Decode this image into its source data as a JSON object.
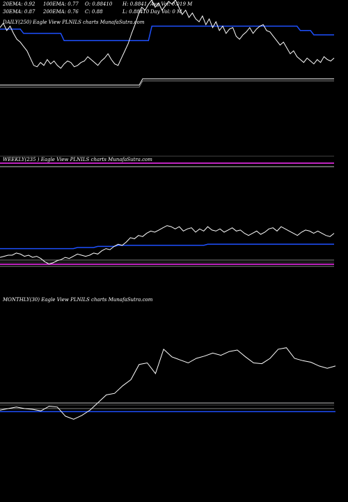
{
  "header": {
    "row1": [
      {
        "text": "20EMA: 0.92"
      },
      {
        "text": "100EMA: 0.77"
      },
      {
        "text": "O: 0.88410"
      },
      {
        "text": "H: 0.8841"
      },
      {
        "text": "Avg Vol: 0.019 M"
      }
    ],
    "row2": [
      {
        "text": "30EMA: 0.87"
      },
      {
        "text": "200EMA: 0.76"
      },
      {
        "text": "C: 0.88"
      },
      {
        "text": "L: 0.88410"
      },
      {
        "text": "Day Vol: 0  M"
      }
    ]
  },
  "colors": {
    "price": "#ffffff",
    "ema": "#1e50ff",
    "band": "#ff30ff",
    "background": "#000000"
  },
  "chart_data": [
    {
      "type": "line",
      "label": "DAILY(250)  Eagle   View  PLNILS charts MunafaSutra.com",
      "series": [
        {
          "values": [
            0.96,
            0.99,
            0.94,
            0.97,
            0.92,
            0.88,
            0.86,
            0.83,
            0.8,
            0.75,
            0.7,
            0.69,
            0.72,
            0.7,
            0.74,
            0.71,
            0.73,
            0.7,
            0.68,
            0.71,
            0.73,
            0.72,
            0.69,
            0.7,
            0.72,
            0.73,
            0.76,
            0.74,
            0.72,
            0.7,
            0.73,
            0.75,
            0.78,
            0.74,
            0.71,
            0.7,
            0.75,
            0.8,
            0.85,
            0.92,
            0.98,
            1.05,
            1.1,
            1.08,
            1.12,
            1.15,
            1.1,
            1.13,
            1.08,
            1.11,
            1.14,
            1.12,
            1.15,
            1.1,
            1.05,
            1.08,
            1.03,
            1.06,
            1.02,
            1.0,
            1.04,
            0.98,
            1.02,
            0.96,
            1.0,
            0.94,
            0.97,
            0.92,
            0.95,
            0.96,
            0.9,
            0.88,
            0.91,
            0.93,
            0.96,
            0.92,
            0.95,
            0.97,
            0.98,
            0.94,
            0.93,
            0.9,
            0.87,
            0.84,
            0.86,
            0.82,
            0.78,
            0.8,
            0.76,
            0.74,
            0.72,
            0.75,
            0.73,
            0.71,
            0.74,
            0.72,
            0.76,
            0.74,
            0.73,
            0.75
          ]
        },
        {
          "values": [
            0.95,
            0.95,
            0.95,
            0.95,
            0.95,
            0.95,
            0.95,
            0.92,
            0.92,
            0.92,
            0.92,
            0.92,
            0.92,
            0.92,
            0.92,
            0.92,
            0.92,
            0.92,
            0.92,
            0.87,
            0.87,
            0.87,
            0.87,
            0.87,
            0.87,
            0.87,
            0.87,
            0.87,
            0.87,
            0.87,
            0.87,
            0.87,
            0.87,
            0.87,
            0.87,
            0.87,
            0.87,
            0.87,
            0.87,
            0.87,
            0.87,
            0.87,
            0.87,
            0.87,
            0.87,
            0.97,
            0.97,
            0.97,
            0.97,
            0.97,
            0.97,
            0.97,
            0.97,
            0.97,
            0.97,
            0.97,
            0.97,
            0.97,
            0.97,
            0.97,
            0.97,
            0.97,
            0.97,
            0.97,
            0.97,
            0.97,
            0.97,
            0.97,
            0.97,
            0.97,
            0.97,
            0.97,
            0.97,
            0.97,
            0.97,
            0.97,
            0.97,
            0.97,
            0.97,
            0.97,
            0.97,
            0.97,
            0.97,
            0.97,
            0.97,
            0.97,
            0.97,
            0.97,
            0.97,
            0.94,
            0.94,
            0.94,
            0.94,
            0.91,
            0.91,
            0.91,
            0.91,
            0.91,
            0.91,
            0.91
          ]
        }
      ],
      "ylim": [
        0.55,
        1.15
      ]
    },
    {
      "type": "line",
      "label": "WEEKLY(235                    ) Eagle   View  PLNILS charts MunafaSutra.com",
      "series": [
        {
          "values": [
            0.56,
            0.57,
            0.58,
            0.58,
            0.6,
            0.59,
            0.57,
            0.58,
            0.56,
            0.57,
            0.55,
            0.52,
            0.5,
            0.51,
            0.53,
            0.54,
            0.56,
            0.55,
            0.57,
            0.59,
            0.58,
            0.57,
            0.58,
            0.6,
            0.59,
            0.62,
            0.64,
            0.63,
            0.66,
            0.68,
            0.67,
            0.7,
            0.74,
            0.73,
            0.76,
            0.75,
            0.78,
            0.8,
            0.79,
            0.81,
            0.83,
            0.85,
            0.84,
            0.82,
            0.84,
            0.8,
            0.82,
            0.83,
            0.79,
            0.82,
            0.8,
            0.84,
            0.81,
            0.8,
            0.82,
            0.79,
            0.81,
            0.83,
            0.8,
            0.81,
            0.78,
            0.76,
            0.78,
            0.8,
            0.77,
            0.79,
            0.82,
            0.83,
            0.8,
            0.84,
            0.82,
            0.8,
            0.78,
            0.76,
            0.79,
            0.81,
            0.8,
            0.78,
            0.8,
            0.78,
            0.76,
            0.75,
            0.78
          ]
        },
        {
          "values": [
            0.64,
            0.64,
            0.64,
            0.64,
            0.64,
            0.64,
            0.64,
            0.64,
            0.64,
            0.64,
            0.64,
            0.64,
            0.64,
            0.64,
            0.64,
            0.64,
            0.64,
            0.64,
            0.64,
            0.65,
            0.65,
            0.65,
            0.65,
            0.65,
            0.66,
            0.66,
            0.66,
            0.66,
            0.66,
            0.67,
            0.67,
            0.67,
            0.67,
            0.67,
            0.67,
            0.67,
            0.67,
            0.67,
            0.67,
            0.67,
            0.67,
            0.67,
            0.67,
            0.67,
            0.67,
            0.67,
            0.67,
            0.67,
            0.67,
            0.67,
            0.67,
            0.68,
            0.68,
            0.68,
            0.68,
            0.68,
            0.68,
            0.68,
            0.68,
            0.68,
            0.68,
            0.68,
            0.68,
            0.68,
            0.68,
            0.68,
            0.68,
            0.68,
            0.68,
            0.68,
            0.68,
            0.68,
            0.68,
            0.68,
            0.68,
            0.68,
            0.68,
            0.68,
            0.68,
            0.68,
            0.68,
            0.68,
            0.68
          ]
        }
      ],
      "ylim": [
        0.3,
        1.0
      ]
    },
    {
      "type": "line",
      "label": "MONTHLY(30) Eagle   View  PLNILS charts MunafaSutra.com",
      "series": [
        {
          "values": [
            0.2,
            0.22,
            0.24,
            0.22,
            0.21,
            0.19,
            0.25,
            0.24,
            0.12,
            0.08,
            0.13,
            0.2,
            0.3,
            0.4,
            0.42,
            0.52,
            0.6,
            0.8,
            0.82,
            0.68,
            1.0,
            0.9,
            0.86,
            0.82,
            0.88,
            0.91,
            0.95,
            0.92,
            0.97,
            0.99,
            0.9,
            0.82,
            0.81,
            0.88,
            1.0,
            1.02,
            0.88,
            0.85,
            0.83,
            0.78,
            0.75,
            0.78
          ]
        },
        {
          "values": [
            0.18,
            0.18,
            0.18,
            0.18,
            0.18,
            0.18,
            0.18,
            0.18,
            0.18,
            0.18,
            0.18,
            0.18,
            0.18,
            0.18,
            0.18,
            0.18,
            0.18,
            0.18,
            0.18,
            0.18,
            0.18,
            0.18,
            0.18,
            0.18,
            0.18,
            0.18,
            0.18,
            0.18,
            0.18,
            0.18,
            0.18,
            0.18,
            0.18,
            0.18,
            0.18,
            0.18,
            0.18,
            0.18,
            0.18,
            0.18,
            0.18,
            0.18
          ]
        }
      ],
      "ylim": [
        0.0,
        1.1
      ]
    }
  ]
}
